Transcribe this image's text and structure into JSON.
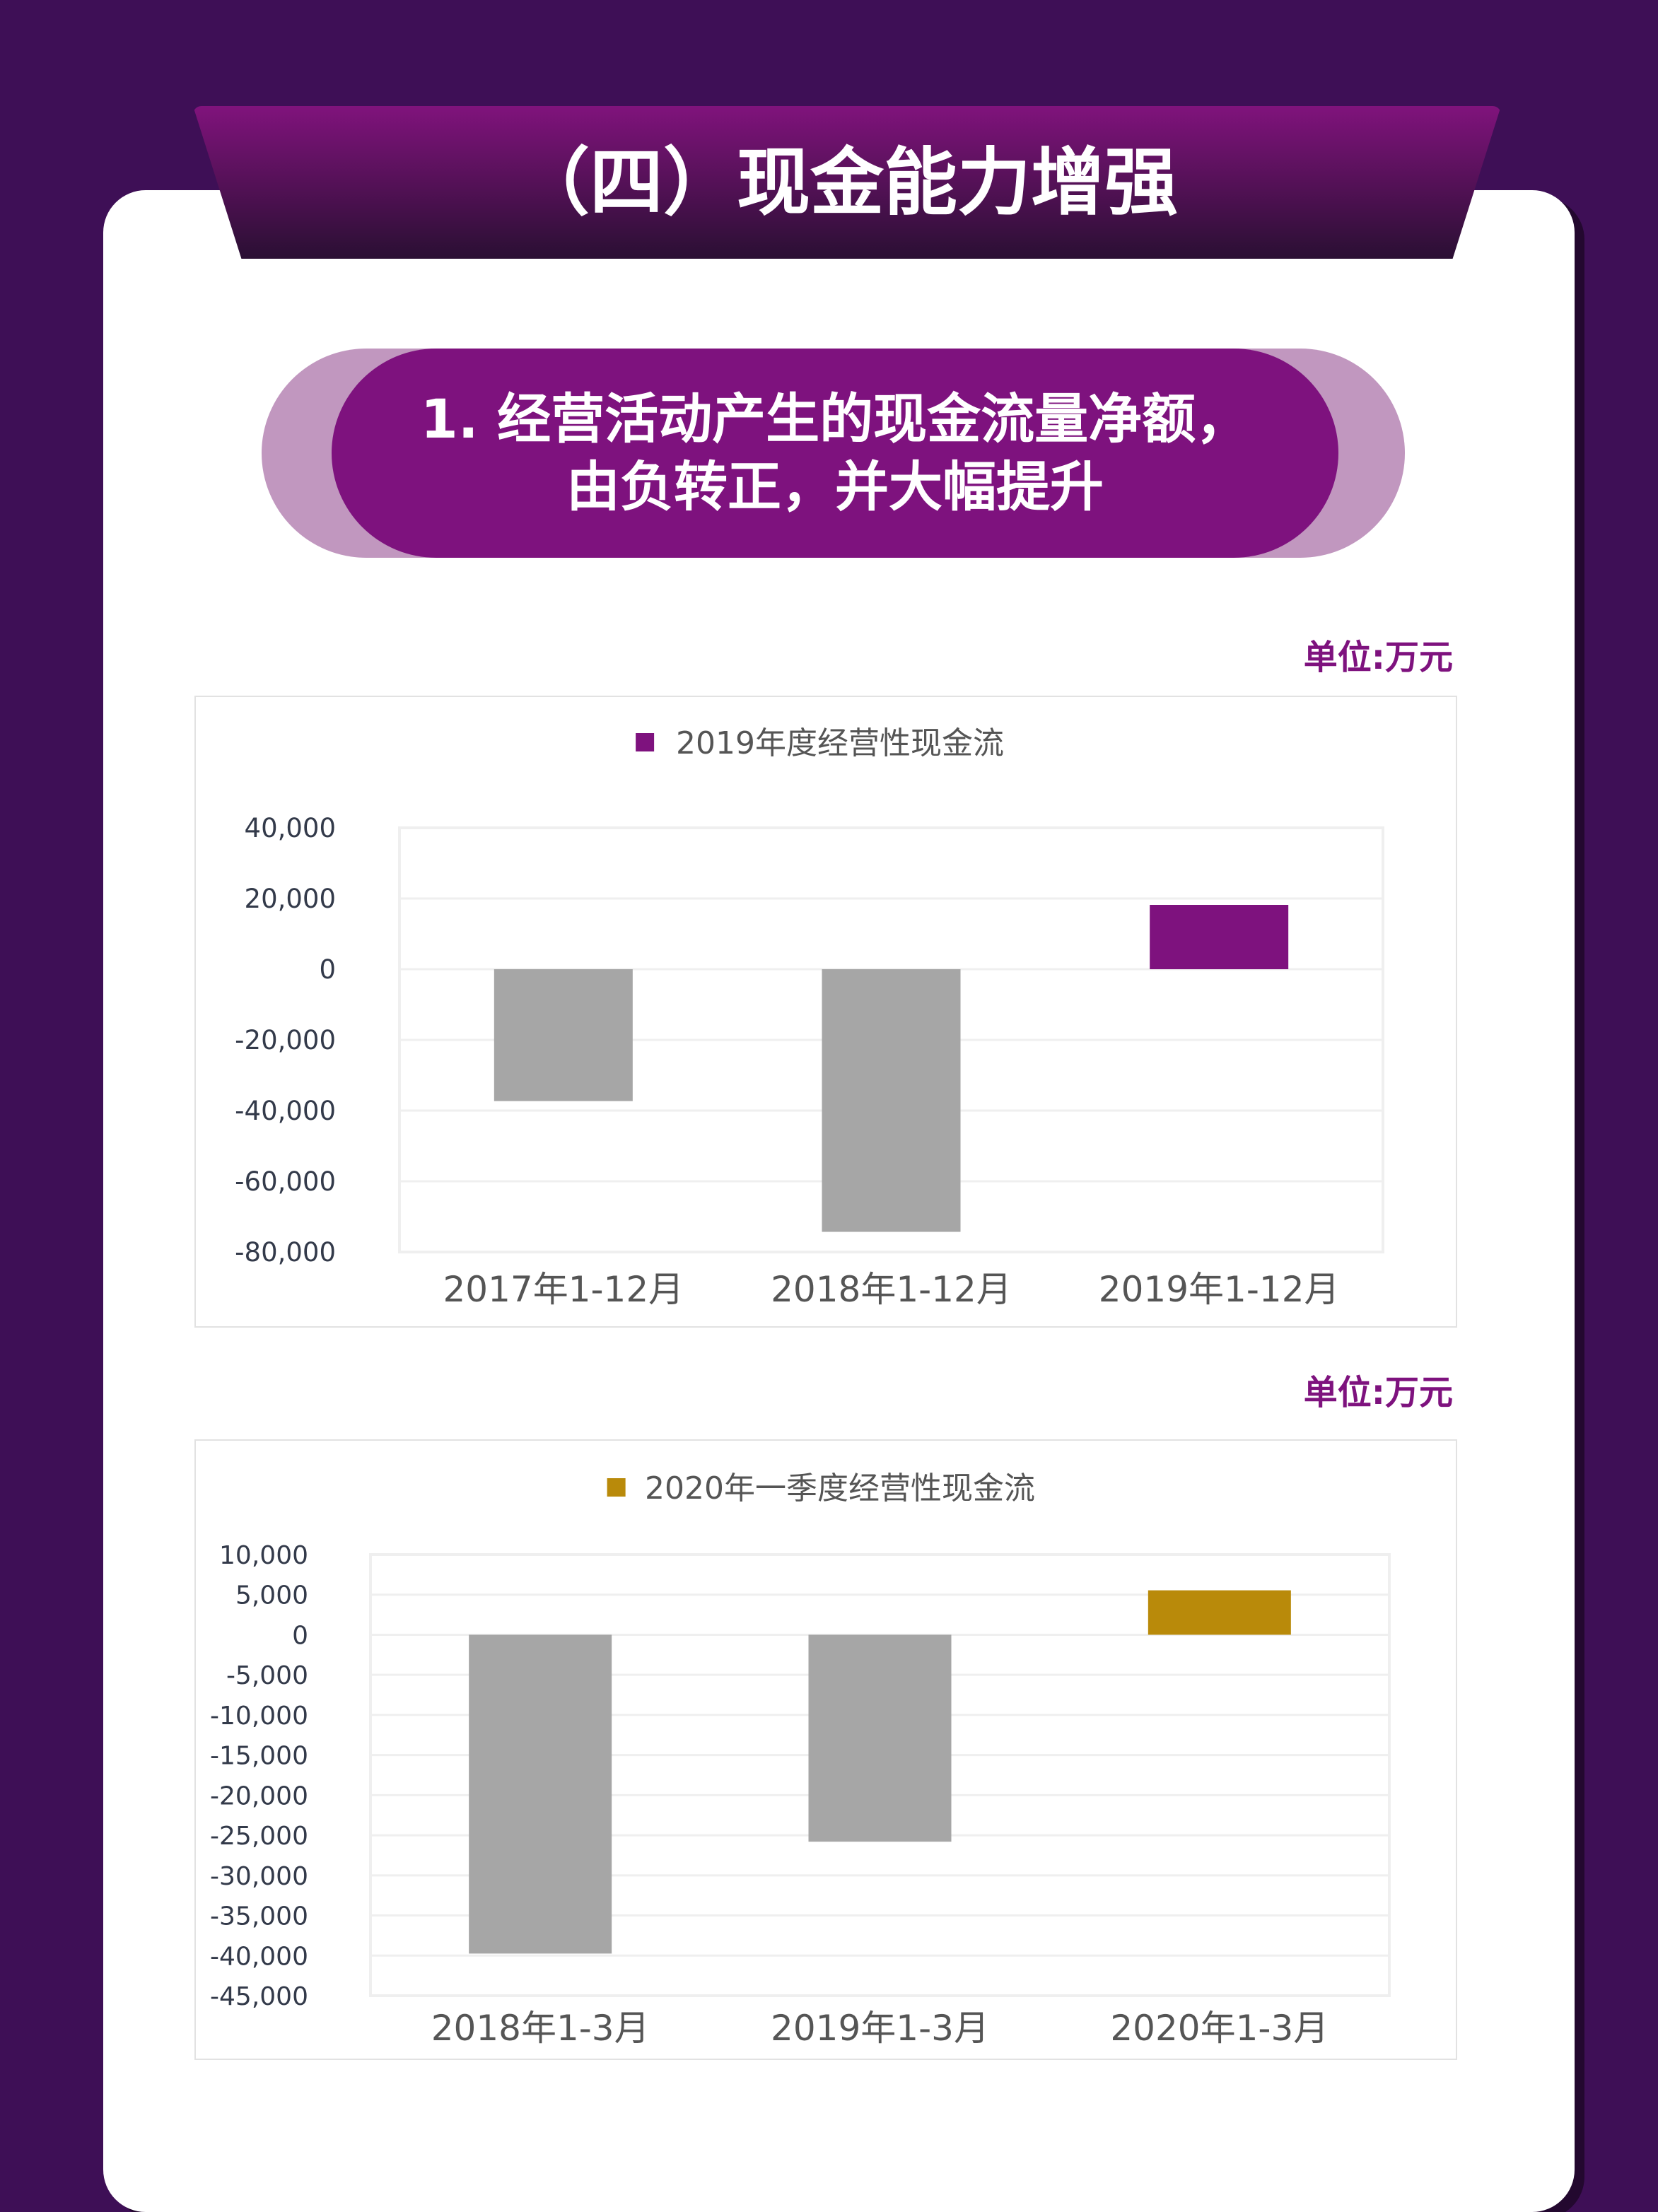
{
  "header": {
    "title": "（四）现金能力增强"
  },
  "section": {
    "title_line1": "1. 经营活动产生的现金流量净额，",
    "title_line2": "由负转正，并大幅提升"
  },
  "colors": {
    "background": "#3e0f56",
    "accent_purple": "#7e127e",
    "accent_gold": "#b98a0a",
    "negative_gray": "#a6a6a6"
  },
  "chart_data": [
    {
      "type": "bar",
      "unit_label": "单位:万元",
      "legend": "2019年度经营性现金流",
      "legend_color": "#7e127e",
      "legend_placement": "top",
      "categories": [
        "2017年1-12月",
        "2018年1-12月",
        "2019年1-12月"
      ],
      "values": [
        -37300,
        -74300,
        18200
      ],
      "bar_colors": [
        "#a6a6a6",
        "#a6a6a6",
        "#7e127e"
      ],
      "ylim": [
        -80000,
        40000
      ],
      "yticks": [
        40000,
        20000,
        0,
        -20000,
        -40000,
        -60000,
        -80000
      ],
      "ytick_labels": [
        "40,000",
        "20,000",
        "0",
        "-20,000",
        "-40,000",
        "-60,000",
        "-80,000"
      ],
      "grid": true
    },
    {
      "type": "bar",
      "unit_label": "单位:万元",
      "legend": "2020年一季度经营性现金流",
      "legend_color": "#b98a0a",
      "legend_placement": "top",
      "categories": [
        "2018年1-3月",
        "2019年1-3月",
        "2020年1-3月"
      ],
      "values": [
        -39750,
        -25800,
        5540
      ],
      "bar_colors": [
        "#a6a6a6",
        "#a6a6a6",
        "#b98a0a"
      ],
      "ylim": [
        -45000,
        10000
      ],
      "yticks": [
        10000,
        5000,
        0,
        -5000,
        -10000,
        -15000,
        -20000,
        -25000,
        -30000,
        -35000,
        -40000,
        -45000
      ],
      "ytick_labels": [
        "10,000",
        "5,000",
        "0",
        "-5,000",
        "-10,000",
        "-15,000",
        "-20,000",
        "-25,000",
        "-30,000",
        "-35,000",
        "-40,000",
        "-45,000"
      ],
      "grid": true
    }
  ]
}
